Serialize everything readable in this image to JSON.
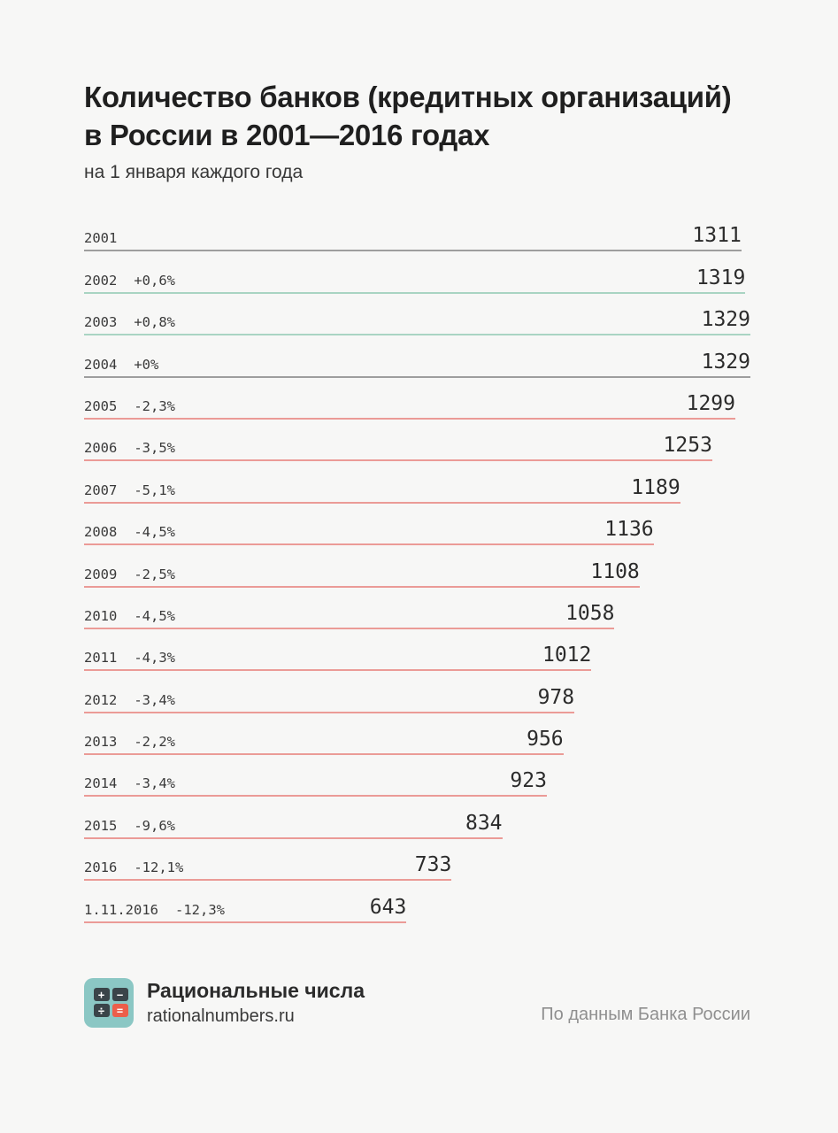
{
  "header": {
    "title_line1": "Количество банков (кредитных организаций)",
    "title_line2": "в России в 2001—2016 годах",
    "subtitle": "на 1 января каждого года"
  },
  "chart_data": {
    "type": "bar",
    "orientation": "horizontal",
    "title": "Количество банков (кредитных организаций) в России в 2001—2016 годах",
    "subtitle": "на 1 января каждого года",
    "max_value": 1329,
    "legend": "none",
    "colors": {
      "increase": "#a9d4c3",
      "decrease": "#eb9b97",
      "neutral": "#9e9e9e"
    },
    "rows": [
      {
        "label": "2001",
        "change": "",
        "value": 1311,
        "trend": "neutral"
      },
      {
        "label": "2002",
        "change": "+0,6%",
        "value": 1319,
        "trend": "increase"
      },
      {
        "label": "2003",
        "change": "+0,8%",
        "value": 1329,
        "trend": "increase"
      },
      {
        "label": "2004",
        "change": "+0%",
        "value": 1329,
        "trend": "neutral"
      },
      {
        "label": "2005",
        "change": "-2,3%",
        "value": 1299,
        "trend": "decrease"
      },
      {
        "label": "2006",
        "change": "-3,5%",
        "value": 1253,
        "trend": "decrease"
      },
      {
        "label": "2007",
        "change": "-5,1%",
        "value": 1189,
        "trend": "decrease"
      },
      {
        "label": "2008",
        "change": "-4,5%",
        "value": 1136,
        "trend": "decrease"
      },
      {
        "label": "2009",
        "change": "-2,5%",
        "value": 1108,
        "trend": "decrease"
      },
      {
        "label": "2010",
        "change": "-4,5%",
        "value": 1058,
        "trend": "decrease"
      },
      {
        "label": "2011",
        "change": "-4,3%",
        "value": 1012,
        "trend": "decrease"
      },
      {
        "label": "2012",
        "change": "-3,4%",
        "value": 978,
        "trend": "decrease"
      },
      {
        "label": "2013",
        "change": "-2,2%",
        "value": 956,
        "trend": "decrease"
      },
      {
        "label": "2014",
        "change": "-3,4%",
        "value": 923,
        "trend": "decrease"
      },
      {
        "label": "2015",
        "change": "-9,6%",
        "value": 834,
        "trend": "decrease"
      },
      {
        "label": "2016",
        "change": "-12,1%",
        "value": 733,
        "trend": "decrease"
      },
      {
        "label": "1.11.2016",
        "change": "-12,3%",
        "value": 643,
        "trend": "decrease"
      }
    ]
  },
  "footer": {
    "brand_name": "Рациональные числа",
    "brand_url": "rationalnumbers.ru",
    "source": "По данным Банка России",
    "logo": {
      "background": "#8bc7c4",
      "tile_dark": "#3a4449",
      "tile_red": "#ec5e4a",
      "symbols": {
        "plus": "+",
        "minus": "−",
        "divide": "÷",
        "equals": "="
      }
    }
  }
}
